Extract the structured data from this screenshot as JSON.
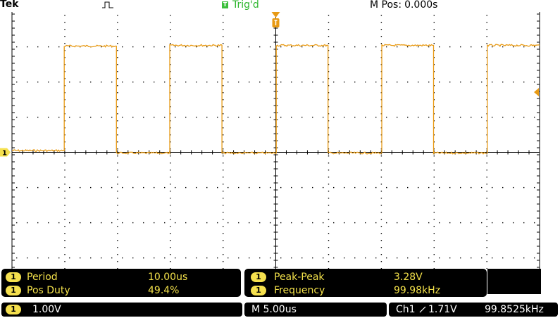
{
  "header": {
    "brand": "Tek",
    "trigger_shape": "rising-edge-pulse-icon",
    "trigger_badge": "T",
    "trigger_status": "Trig'd",
    "mpos_label": "M Pos:",
    "mpos_value": "0.000s"
  },
  "display": {
    "channel_marker": "1",
    "trace_color": "#e89a14",
    "grid_color": "#000000",
    "background": "#ffffff"
  },
  "chart_data": {
    "type": "line",
    "title": "",
    "xlabel": "",
    "ylabel": "",
    "x_unit": "us",
    "y_unit": "V",
    "time_per_div_us": 5,
    "volts_per_div": 1,
    "xlim": [
      -25,
      25
    ],
    "ylim": [
      -4,
      4
    ],
    "grid": true,
    "series": [
      {
        "x": [
          -25.0,
          -20.05,
          -20.05,
          -15.1,
          -15.1,
          -10.05,
          -10.05,
          -5.1,
          -5.1,
          0.05,
          0.05,
          4.95,
          4.95,
          10.05,
          10.05,
          14.95,
          14.95,
          20.05,
          20.05,
          25.0
        ],
        "y": [
          0.05,
          0.05,
          3.02,
          3.02,
          -0.02,
          -0.02,
          3.04,
          3.04,
          -0.02,
          -0.02,
          3.04,
          3.04,
          -0.02,
          -0.02,
          3.04,
          3.04,
          -0.02,
          -0.02,
          3.04,
          3.04
        ]
      }
    ]
  },
  "measurements": [
    {
      "channel": "1",
      "label": "Period",
      "value": "10.00us"
    },
    {
      "channel": "1",
      "label": "Pos Duty",
      "value": "49.4%"
    },
    {
      "channel": "1",
      "label": "Peak-Peak",
      "value": "3.28V"
    },
    {
      "channel": "1",
      "label": "Frequency",
      "value": "99.98kHz"
    }
  ],
  "status": {
    "ch1_badge": "1",
    "ch1_scale": "1.00V",
    "timebase": "M 5.00us",
    "trigger_source": "Ch1",
    "trigger_slope_icon": "rising-slope-icon",
    "trigger_level": "1.71V",
    "trigger_freq": "99.8525kHz"
  }
}
